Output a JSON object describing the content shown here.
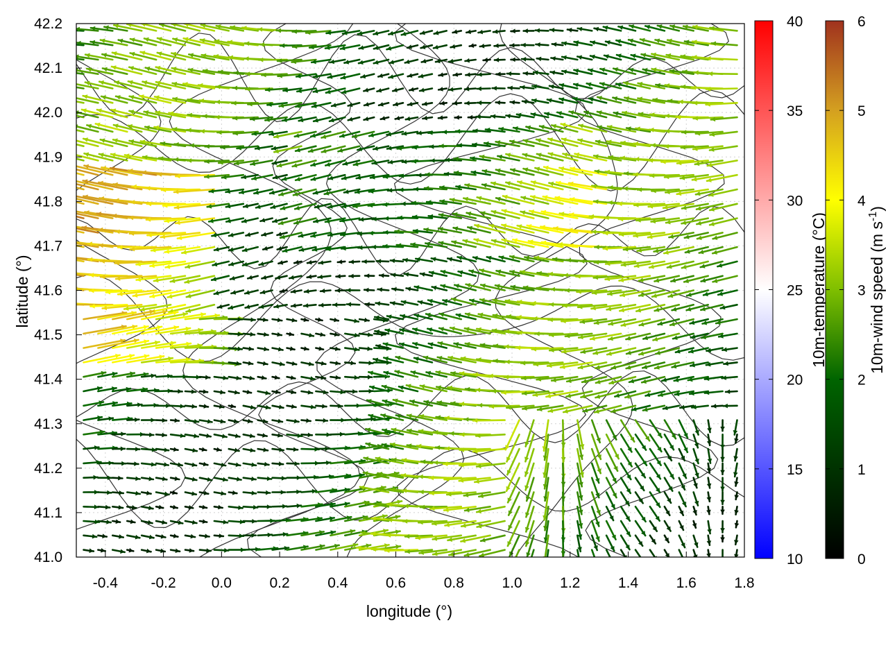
{
  "chart_data": {
    "type": "vector-field",
    "xlabel": "longitude (°)",
    "ylabel": "latitude (°)",
    "xlim": [
      -0.5,
      1.8
    ],
    "ylim": [
      41.0,
      42.2
    ],
    "xticks": [
      "-0.4",
      "-0.2",
      "0.0",
      "0.2",
      "0.4",
      "0.6",
      "0.8",
      "1.0",
      "1.2",
      "1.4",
      "1.6",
      "1.8"
    ],
    "yticks": [
      "41.0",
      "41.1",
      "41.2",
      "41.3",
      "41.4",
      "41.5",
      "41.6",
      "41.7",
      "41.8",
      "41.9",
      "42.0",
      "42.1",
      "42.2"
    ],
    "grid": true,
    "colorbars": [
      {
        "label": "10m-temperature (°C)",
        "range": [
          10,
          40
        ],
        "ticks": [
          "10",
          "15",
          "20",
          "25",
          "30",
          "35",
          "40"
        ],
        "palette": [
          "#0000ff",
          "#ffffff",
          "#ff0000"
        ]
      },
      {
        "label_main": "10m-wind speed (m s",
        "label_sup": "-1",
        "label_end": ")",
        "range": [
          0,
          6
        ],
        "ticks": [
          "0",
          "1",
          "2",
          "3",
          "4",
          "5",
          "6"
        ],
        "palette": [
          "#000000",
          "#006400",
          "#7fbf00",
          "#ffff00",
          "#d4a020",
          "#a0321e"
        ]
      }
    ],
    "notes": "Wind vectors on a regular grid colored by 10m wind speed, with terrain contour lines; mostly westward flow in the north, eastward flow in the south-west."
  }
}
